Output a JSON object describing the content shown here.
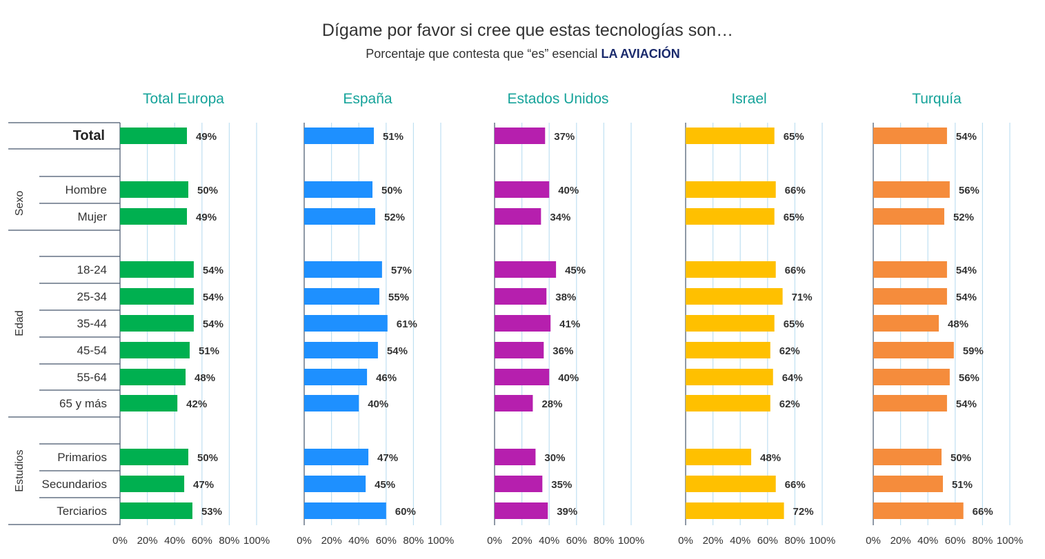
{
  "title": "Dígame por favor si cree que estas tecnologías son…",
  "subtitle": "Porcentaje que contesta que “es” esencial",
  "subtitle_emphasis": "LA AVIACIÓN",
  "row_labels": [
    "Total",
    "Hombre",
    "Mujer",
    "18-24",
    "25-34",
    "35-44",
    "45-54",
    "55-64",
    "65 y más",
    "Primarios",
    "Secundarios",
    "Terciarios"
  ],
  "groups": [
    "Sexo",
    "Edad",
    "Estudios"
  ],
  "tick_labels": [
    "0%",
    "20%",
    "40%",
    "60%",
    "80%",
    "100%"
  ],
  "chart_data": {
    "type": "bar",
    "orientation": "horizontal",
    "title": "Dígame por favor si cree que estas tecnologías son…",
    "subtitle": "Porcentaje que contesta que “es” esencial LA AVIACIÓN",
    "categories": [
      "Total",
      "Hombre",
      "Mujer",
      "18-24",
      "25-34",
      "35-44",
      "45-54",
      "55-64",
      "65 y más",
      "Primarios",
      "Secundarios",
      "Terciarios"
    ],
    "xlim": [
      0,
      100
    ],
    "unit": "%",
    "grid": true,
    "series": [
      {
        "name": "Total Europa",
        "color": "#00b050",
        "values": [
          49,
          50,
          49,
          54,
          54,
          54,
          51,
          48,
          42,
          50,
          47,
          53
        ]
      },
      {
        "name": "España",
        "color": "#1e90ff",
        "values": [
          51,
          50,
          52,
          57,
          55,
          61,
          54,
          46,
          40,
          47,
          45,
          60
        ]
      },
      {
        "name": "Estados Unidos",
        "color": "#b61fae",
        "values": [
          37,
          40,
          34,
          45,
          38,
          41,
          36,
          40,
          28,
          30,
          35,
          39
        ]
      },
      {
        "name": "Israel",
        "color": "#ffc000",
        "values": [
          65,
          66,
          65,
          66,
          71,
          65,
          62,
          64,
          62,
          48,
          66,
          72
        ]
      },
      {
        "name": "Turquía",
        "color": "#f58c3c",
        "values": [
          54,
          56,
          52,
          54,
          54,
          48,
          59,
          56,
          54,
          50,
          51,
          66
        ]
      }
    ]
  }
}
